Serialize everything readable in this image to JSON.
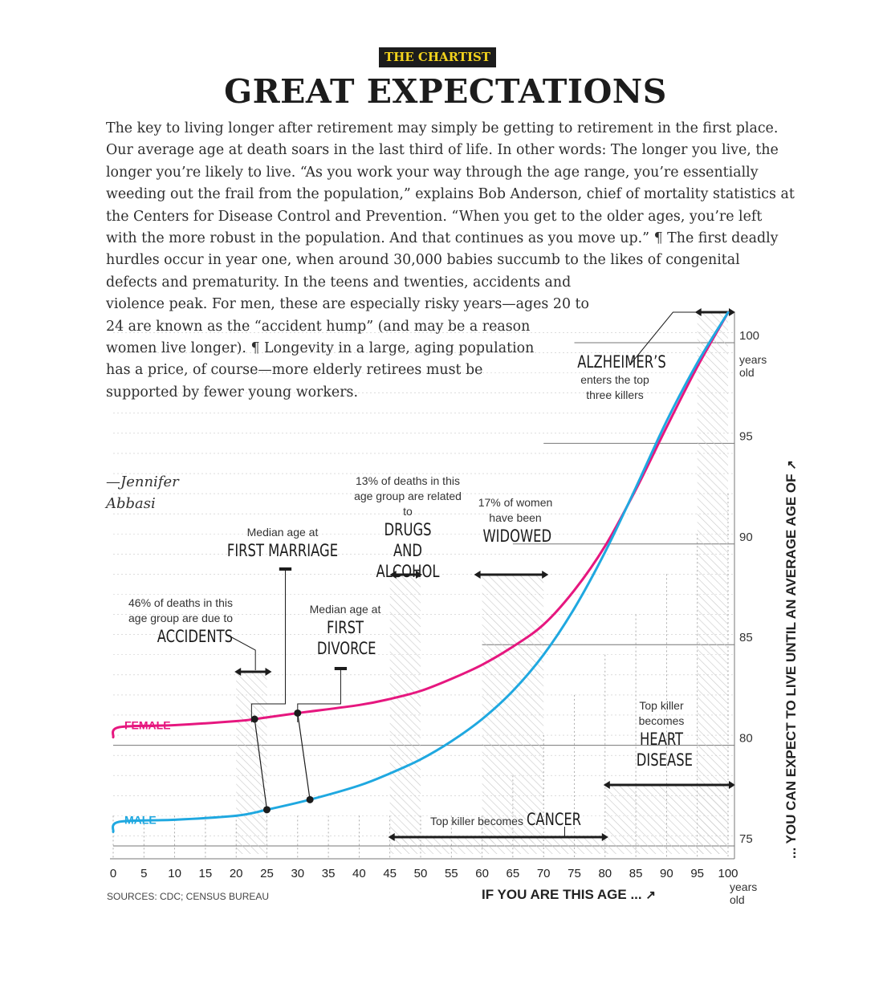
{
  "header": {
    "badge": "THE CHARTIST",
    "title": "GREAT EXPECTATIONS"
  },
  "article": {
    "body": "The key to living longer after retirement may simply be getting to retirement in the first place. Our average age at death soars in the last third of life. In other words: The longer you live, the longer you’re likely to live. “As you work your way through the age range, you’re essentially weeding out the frail from the population,” explains Bob Anderson, chief of mortality statistics at the Centers for Disease Control and Prevention. “When you get to the older ages, you’re left with the more robust in the population. And that continues as you move up.” ¶ The first deadly hurdles occur in year one, when around 30,000 babies succumb to the likes of congenital defects and prematurity. In the teens and twenties, accidents and violence peak. For men, these are especially risky years—ages 20 to 24 are known as the “accident hump” (and may be a reason women live longer). ¶ Longevity in a large, aging population has a price, of course—more elderly retirees must be supported by fewer young workers.",
    "byline": "—Jennifer Abbasi"
  },
  "sources": "SOURCES: CDC; CENSUS BUREAU",
  "colors": {
    "female": "#e6177f",
    "male": "#1fa8e0",
    "ink": "#1c1c1c",
    "grid": "#9a9a9a"
  },
  "annotations": {
    "accidents": {
      "small": "46% of deaths in this age group are due to",
      "big": "ACCIDENTS"
    },
    "marriage": {
      "small": "Median age at",
      "big": "FIRST MARRIAGE"
    },
    "divorce": {
      "small": "Median age at",
      "big": "FIRST DIVORCE"
    },
    "drugs": {
      "small": "13% of deaths in this age group are related to",
      "big": "DRUGS AND ALCOHOL"
    },
    "widowed": {
      "small": "17% of women have been",
      "big": "WIDOWED"
    },
    "alzheimers": {
      "big": "ALZHEIMER’S",
      "small": "enters the top three killers"
    },
    "heart": {
      "small": "Top killer becomes",
      "big": "HEART DISEASE"
    },
    "cancer": {
      "small": "Top killer becomes",
      "big": "CANCER"
    }
  },
  "chart_data": {
    "type": "line",
    "x_axis_title": "IF YOU ARE THIS AGE ...",
    "y_axis_title": "... YOU CAN EXPECT TO LIVE UNTIL AN AVERAGE AGE OF",
    "x_ticks": [
      "0",
      "5",
      "10",
      "15",
      "20",
      "25",
      "30",
      "35",
      "40",
      "45",
      "50",
      "55",
      "60",
      "65",
      "70",
      "75",
      "80",
      "85",
      "90",
      "95",
      "100"
    ],
    "x_end_unit": "years old",
    "y_ticks": [
      "75",
      "80",
      "85",
      "90",
      "95",
      "100"
    ],
    "y_top_unit": "years old",
    "xlim": [
      0,
      100
    ],
    "ylim": [
      74.2,
      101.5
    ],
    "series": [
      {
        "name": "FEMALE",
        "x": [
          0,
          1,
          10,
          20,
          23,
          30,
          40,
          45,
          50,
          55,
          60,
          65,
          70,
          75,
          80,
          85,
          90,
          95,
          100
        ],
        "y": [
          80.4,
          80.9,
          81.0,
          81.2,
          81.3,
          81.6,
          82.0,
          82.3,
          82.7,
          83.3,
          84.0,
          84.9,
          86.0,
          87.7,
          89.9,
          92.7,
          95.8,
          98.8,
          101.5
        ]
      },
      {
        "name": "MALE",
        "x": [
          0,
          1,
          10,
          20,
          25,
          32,
          40,
          45,
          50,
          55,
          60,
          65,
          70,
          75,
          80,
          85,
          90,
          95,
          100
        ],
        "y": [
          75.7,
          76.2,
          76.3,
          76.5,
          76.8,
          77.3,
          78.0,
          78.6,
          79.3,
          80.2,
          81.3,
          82.7,
          84.5,
          86.8,
          89.6,
          92.8,
          96.1,
          99.0,
          101.5
        ]
      }
    ],
    "markers": [
      {
        "series": "FEMALE",
        "x": 23
      },
      {
        "series": "MALE",
        "x": 25
      },
      {
        "series": "FEMALE",
        "x": 30
      },
      {
        "series": "MALE",
        "x": 32
      }
    ],
    "ranges": [
      {
        "name": "accidents",
        "from": 20,
        "to": 25
      },
      {
        "name": "drugs",
        "from": 45,
        "to": 50
      },
      {
        "name": "widowed",
        "from": 60,
        "to": 70
      },
      {
        "name": "alzheimers",
        "from": 95,
        "to": 100
      },
      {
        "name": "heart",
        "from": 80,
        "to": 100
      },
      {
        "name": "cancer",
        "from": 45,
        "to": 80
      }
    ]
  }
}
